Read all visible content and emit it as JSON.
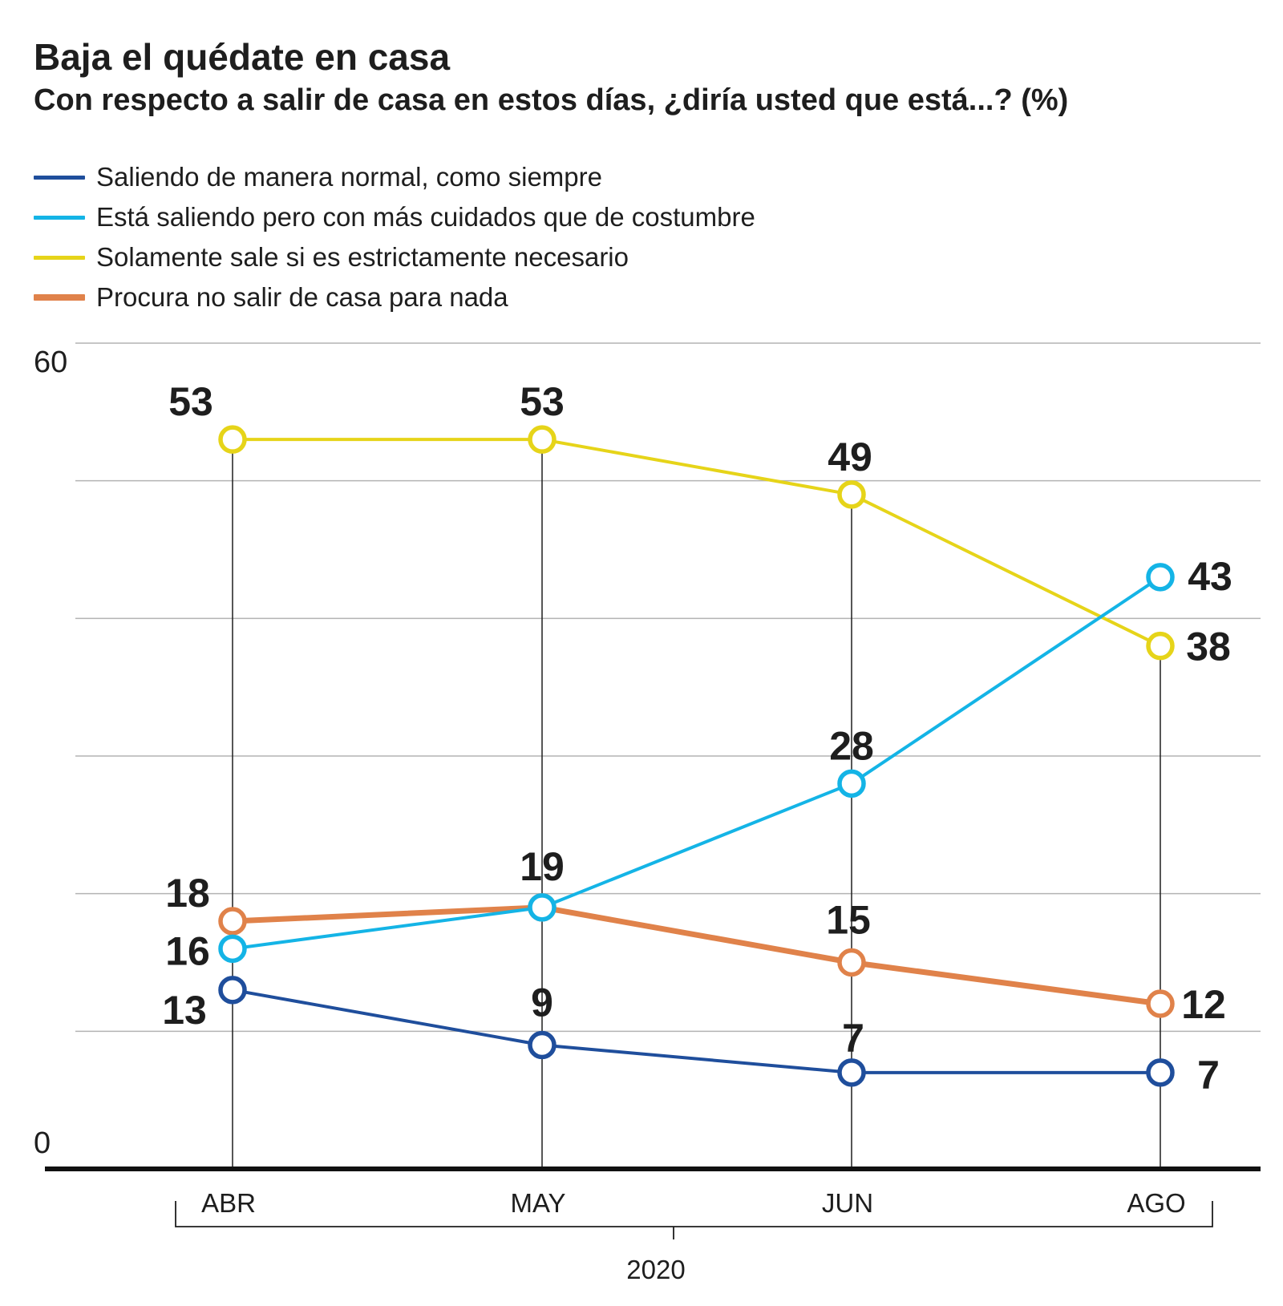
{
  "chart_data": {
    "type": "line",
    "title": "Baja el quédate en casa",
    "subtitle": "Con respecto a salir de casa en estos días, ¿diría usted que está...?  (%)",
    "categories": [
      "ABR",
      "MAY",
      "JUN",
      "AGO"
    ],
    "year_label": "2020",
    "ylim": [
      0,
      60
    ],
    "y_tick_labels": [
      {
        "value": 60,
        "label": "60"
      },
      {
        "value": 0,
        "label": "0"
      }
    ],
    "gridlines": [
      10,
      20,
      30,
      40,
      50,
      60
    ],
    "legend_position": "top-left",
    "series": [
      {
        "name": "Saliendo de manera normal, como siempre",
        "color": "#1f4e9c",
        "values": [
          13,
          9,
          7,
          7
        ]
      },
      {
        "name": "Está saliendo pero con más cuidados que de costumbre",
        "color": "#14b4e6",
        "values": [
          16,
          19,
          28,
          43
        ]
      },
      {
        "name": "Solamente sale si es estrictamente necesario",
        "color": "#e6d419",
        "values": [
          53,
          53,
          49,
          38
        ]
      },
      {
        "name": "Procura no salir de casa para nada",
        "color": "#e0824a",
        "values": [
          18,
          19,
          15,
          12
        ]
      }
    ],
    "data_labels": [
      {
        "series": 0,
        "point": 0,
        "text": "13"
      },
      {
        "series": 0,
        "point": 1,
        "text": "9"
      },
      {
        "series": 0,
        "point": 2,
        "text": "7"
      },
      {
        "series": 0,
        "point": 3,
        "text": "7"
      },
      {
        "series": 1,
        "point": 0,
        "text": "16"
      },
      {
        "series": 1,
        "point": 1,
        "text": "19"
      },
      {
        "series": 1,
        "point": 2,
        "text": "28"
      },
      {
        "series": 1,
        "point": 3,
        "text": "43"
      },
      {
        "series": 2,
        "point": 0,
        "text": "53"
      },
      {
        "series": 2,
        "point": 1,
        "text": "53"
      },
      {
        "series": 2,
        "point": 2,
        "text": "49"
      },
      {
        "series": 2,
        "point": 3,
        "text": "38"
      },
      {
        "series": 3,
        "point": 0,
        "text": "18"
      },
      {
        "series": 3,
        "point": 2,
        "text": "15"
      },
      {
        "series": 3,
        "point": 3,
        "text": "12"
      }
    ]
  }
}
